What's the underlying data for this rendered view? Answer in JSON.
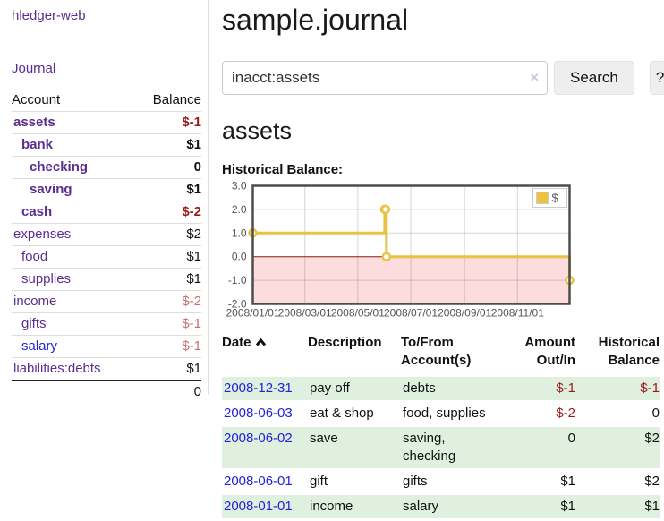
{
  "sidebar": {
    "app_title": "hledger-web",
    "journal_label": "Journal",
    "table": {
      "account_header": "Account",
      "balance_header": "Balance",
      "rows": [
        {
          "name": "assets",
          "depth": 1,
          "balance": "$-1",
          "bold": true,
          "negative": true
        },
        {
          "name": "bank",
          "depth": 2,
          "balance": "$1",
          "bold": true,
          "negative": false
        },
        {
          "name": "checking",
          "depth": 3,
          "balance": "0",
          "bold": true,
          "negative": false
        },
        {
          "name": "saving",
          "depth": 3,
          "balance": "$1",
          "bold": true,
          "negative": false
        },
        {
          "name": "cash",
          "depth": 2,
          "balance": "$-2",
          "bold": true,
          "negative": true
        },
        {
          "name": "expenses",
          "depth": 1,
          "balance": "$2",
          "bold": false,
          "negative": false
        },
        {
          "name": "food",
          "depth": 2,
          "balance": "$1",
          "bold": false,
          "negative": false
        },
        {
          "name": "supplies",
          "depth": 2,
          "balance": "$1",
          "bold": false,
          "negative": false
        },
        {
          "name": "income",
          "depth": 1,
          "balance": "$-2",
          "bold": false,
          "negative": true
        },
        {
          "name": "gifts",
          "depth": 2,
          "balance": "$-1",
          "bold": false,
          "negative": true
        },
        {
          "name": "salary",
          "depth": 2,
          "balance": "$-1",
          "bold": false,
          "negative": true,
          "blue": true
        },
        {
          "name": "liabilities:debts",
          "depth": 1,
          "balance": "$1",
          "bold": false,
          "negative": false
        }
      ],
      "total": "0"
    }
  },
  "header": {
    "title": "sample.journal"
  },
  "search": {
    "query": "inacct:assets",
    "clear_icon": "×",
    "search_label": "Search",
    "help_label": "?"
  },
  "account_page": {
    "heading": "assets",
    "chart_label": "Historical Balance:"
  },
  "chart_data": {
    "type": "line",
    "steps": true,
    "title": "Historical Balance",
    "series": [
      {
        "name": "$",
        "color": "#e8c240",
        "points": [
          {
            "x": "2008-01-01",
            "y": 1.0
          },
          {
            "x": "2008-06-01",
            "y": 2.0
          },
          {
            "x": "2008-06-02",
            "y": 2.0
          },
          {
            "x": "2008-06-03",
            "y": 0.0
          },
          {
            "x": "2008-12-31",
            "y": -1.0
          }
        ]
      }
    ],
    "xlim": [
      "2008-01-01",
      "2008-12-31"
    ],
    "ylim": [
      -2,
      3
    ],
    "x_ticks": [
      {
        "pos": "2008-01-01",
        "label": "2008/01/01"
      },
      {
        "pos": "2008-03-01",
        "label": "2008/03/01"
      },
      {
        "pos": "2008-05-01",
        "label": "2008/05/01"
      },
      {
        "pos": "2008-07-01",
        "label": "2008/07/01"
      },
      {
        "pos": "2008-09-01",
        "label": "2008/09/01"
      },
      {
        "pos": "2008-11-01",
        "label": "2008/11/01"
      }
    ],
    "y_ticks": [
      {
        "value": 3,
        "label": "3.0"
      },
      {
        "value": 2,
        "label": "2.0"
      },
      {
        "value": 1,
        "label": "1.0"
      },
      {
        "value": 0,
        "label": "0.0"
      },
      {
        "value": -1,
        "label": "-1.0"
      },
      {
        "value": -2,
        "label": "-2.0"
      }
    ],
    "legend": {
      "label": "$",
      "position": "top-right",
      "swatch_color": "#edc240"
    },
    "grid": true,
    "colors": {
      "negative_region": "#fcdcdc",
      "zero_line": "#8b1515",
      "grid": "rgba(90,90,90,0.25)",
      "border": "#4d4d4d",
      "tick_text": "#545454",
      "marker_fill": "#ffffff"
    }
  },
  "register": {
    "columns": {
      "date": "Date",
      "description": "Description",
      "accounts": "To/From Account(s)",
      "amount": "Amount Out/In",
      "balance": "Historical Balance"
    },
    "rows": [
      {
        "date": "2008-12-31",
        "description": "pay off",
        "accounts": "debts",
        "amount": "$-1",
        "balance": "$-1"
      },
      {
        "date": "2008-06-03",
        "description": "eat & shop",
        "accounts": "food, supplies",
        "amount": "$-2",
        "balance": "0"
      },
      {
        "date": "2008-06-02",
        "description": "save",
        "accounts": "saving, checking",
        "amount": "0",
        "balance": "$2"
      },
      {
        "date": "2008-06-01",
        "description": "gift",
        "accounts": "gifts",
        "amount": "$1",
        "balance": "$2"
      },
      {
        "date": "2008-01-01",
        "description": "income",
        "accounts": "salary",
        "amount": "$1",
        "balance": "$1"
      }
    ]
  }
}
